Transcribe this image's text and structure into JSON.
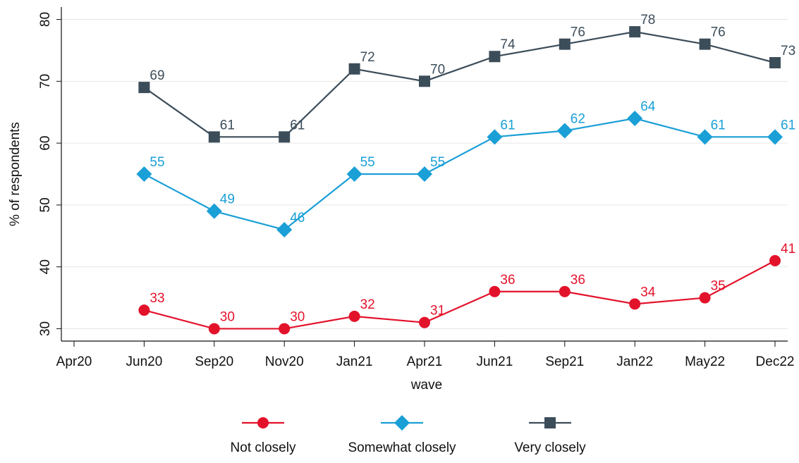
{
  "chart_data": {
    "type": "line",
    "categories": [
      "Apr20",
      "Jun20",
      "Sep20",
      "Nov20",
      "Jan21",
      "Apr21",
      "Jun21",
      "Sep21",
      "Jan22",
      "May22",
      "Dec22"
    ],
    "x_label": "wave",
    "y_label": "% of respondents",
    "ylim": [
      28,
      82
    ],
    "yticks": [
      30,
      40,
      50,
      60,
      70,
      80
    ],
    "grid": true,
    "series": [
      {
        "name": "Not closely",
        "color": "#e3122b",
        "marker": "circle",
        "values": [
          null,
          33,
          30,
          30,
          32,
          31,
          36,
          36,
          34,
          35,
          41
        ]
      },
      {
        "name": "Somewhat closely",
        "color": "#1a9fd6",
        "marker": "diamond",
        "values": [
          null,
          55,
          49,
          46,
          55,
          55,
          61,
          62,
          64,
          61,
          61
        ]
      },
      {
        "name": "Very closely",
        "color": "#3c4d5a",
        "marker": "square",
        "values": [
          null,
          69,
          61,
          61,
          72,
          70,
          74,
          76,
          78,
          76,
          73
        ]
      }
    ]
  }
}
